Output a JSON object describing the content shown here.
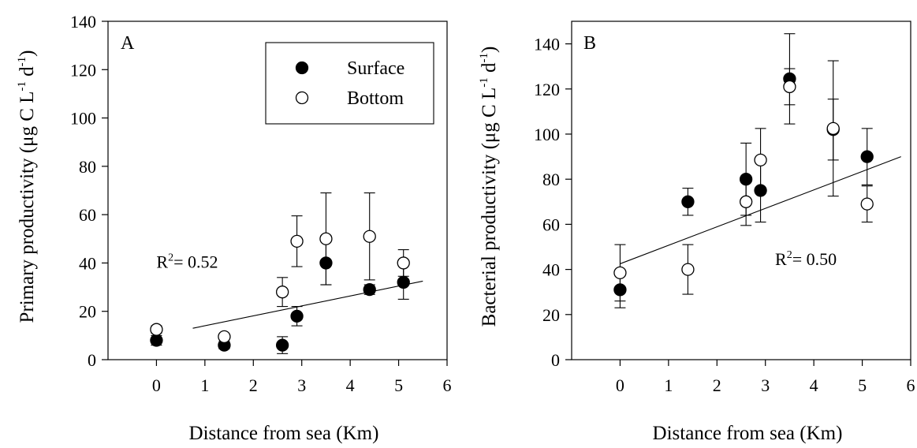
{
  "colors": {
    "axis": "#000000",
    "surface_fill": "#000000",
    "bottom_fill": "#ffffff"
  },
  "legend": {
    "surface_label": "Surface",
    "bottom_label": "Bottom",
    "placement": "top-right of panel A"
  },
  "chart_data": [
    {
      "type": "scatter",
      "panel_label": "A",
      "xlabel": "Distance from sea (Km)",
      "ylabel": "Primary productivity (μg C L⁻¹ d⁻¹)",
      "ylabel_parts": {
        "main": "Primary productivity (μg C L",
        "exp1": "-1",
        "mid": " d",
        "exp2": "-1",
        "end": ")"
      },
      "xlim": [
        -1,
        6
      ],
      "ylim": [
        0,
        140
      ],
      "xticks": [
        0,
        1,
        2,
        3,
        4,
        5,
        6
      ],
      "yticks": [
        0,
        20,
        40,
        60,
        80,
        100,
        120,
        140
      ],
      "grid": false,
      "series": [
        {
          "name": "Surface",
          "marker": "filled-circle",
          "points": [
            {
              "x": 0,
              "y": 8,
              "err": 2
            },
            {
              "x": 1.4,
              "y": 6,
              "err": 1.5
            },
            {
              "x": 2.6,
              "y": 6,
              "err": 3.5
            },
            {
              "x": 2.9,
              "y": 18,
              "err": 4
            },
            {
              "x": 3.5,
              "y": 40,
              "err": 9
            },
            {
              "x": 4.4,
              "y": 29,
              "err": 2
            },
            {
              "x": 5.1,
              "y": 32,
              "err": 7
            }
          ]
        },
        {
          "name": "Bottom",
          "marker": "open-circle",
          "points": [
            {
              "x": 0,
              "y": 12.5,
              "err": 1.5
            },
            {
              "x": 1.4,
              "y": 9.5,
              "err": 1
            },
            {
              "x": 2.6,
              "y": 28,
              "err": 6
            },
            {
              "x": 2.9,
              "y": 49,
              "err": 10.5
            },
            {
              "x": 3.5,
              "y": 50,
              "err": 19
            },
            {
              "x": 4.4,
              "y": 51,
              "err": 18
            },
            {
              "x": 5.1,
              "y": 40,
              "err": 5.5
            }
          ]
        }
      ],
      "trendline": {
        "x": [
          0.75,
          5.5
        ],
        "y": [
          13,
          32.5
        ]
      },
      "annotation": {
        "prefix": "R",
        "sup": "2",
        "suffix": "= 0.52",
        "x": 0,
        "y": 38
      }
    },
    {
      "type": "scatter",
      "panel_label": "B",
      "xlabel": "Distance from sea (Km)",
      "ylabel": "Bacterial productivity (μg C L⁻¹ d⁻¹)",
      "ylabel_parts": {
        "main": "Bacterial productivity (μg C L",
        "exp1": "-1",
        "mid": " d",
        "exp2": "-1",
        "end": ")"
      },
      "xlim": [
        -1,
        6
      ],
      "ylim": [
        0,
        150
      ],
      "xticks": [
        0,
        1,
        2,
        3,
        4,
        5,
        6
      ],
      "yticks": [
        0,
        20,
        40,
        60,
        80,
        100,
        120,
        140
      ],
      "grid": false,
      "series": [
        {
          "name": "Surface",
          "marker": "filled-circle",
          "points": [
            {
              "x": 0,
              "y": 31,
              "err": 8
            },
            {
              "x": 1.4,
              "y": 70,
              "err": 6
            },
            {
              "x": 2.6,
              "y": 80,
              "err": 16
            },
            {
              "x": 2.9,
              "y": 75,
              "err": 14
            },
            {
              "x": 3.5,
              "y": 124.5,
              "err": 20
            },
            {
              "x": 4.4,
              "y": 102,
              "err": 13.5
            },
            {
              "x": 5.1,
              "y": 90,
              "err": 12.5
            }
          ]
        },
        {
          "name": "Bottom",
          "marker": "open-circle",
          "points": [
            {
              "x": 0,
              "y": 38.5,
              "err": 12.5
            },
            {
              "x": 1.4,
              "y": 40,
              "err": 11
            },
            {
              "x": 2.6,
              "y": 70,
              "err": 10.5
            },
            {
              "x": 2.9,
              "y": 88.5,
              "err": 14
            },
            {
              "x": 3.5,
              "y": 121,
              "err": 8
            },
            {
              "x": 4.4,
              "y": 102.5,
              "err": 30
            },
            {
              "x": 5.1,
              "y": 69,
              "err": 8
            }
          ]
        }
      ],
      "trendline": {
        "x": [
          0,
          5.8
        ],
        "y": [
          42.5,
          90
        ]
      },
      "annotation": {
        "prefix": "R",
        "sup": "2",
        "suffix": "= 0.50",
        "x": 3.2,
        "y": 42
      }
    }
  ]
}
